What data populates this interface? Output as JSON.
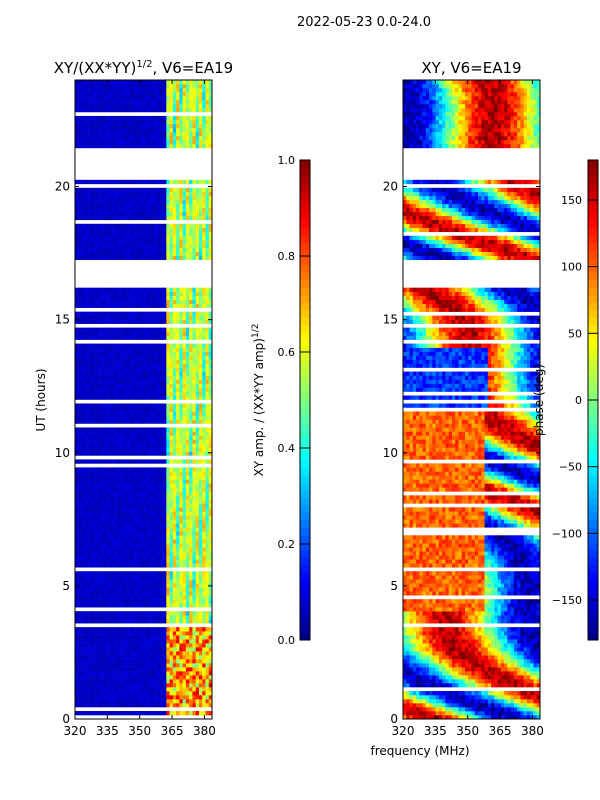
{
  "chart_data": {
    "type": "heatmap",
    "suptitle": "2022-05-23 0.0-24.0",
    "xlabel": "frequency (MHz)",
    "panels": [
      {
        "id": "amp",
        "title_main": "XY/(XX*YY)",
        "title_sup": "1/2",
        "title_tail": ", V6=EA19",
        "ylabel": "UT (hours)",
        "xlim": [
          320,
          383.5
        ],
        "ylim": [
          0,
          24
        ],
        "xticks": [
          320,
          335,
          350,
          365,
          380
        ],
        "yticks": [
          0,
          5,
          10,
          15,
          20
        ],
        "colorbar": {
          "label": "XY amp. / (XX*YY amp)",
          "label_sup": "1/2",
          "range": [
            0.0,
            1.0
          ],
          "ticks": [
            "0.0",
            "0.2",
            "0.4",
            "0.6",
            "0.8",
            "1.0"
          ],
          "colormap": "jet"
        }
      },
      {
        "id": "phase",
        "title_main": "XY, V6=EA19",
        "title_sup": "",
        "title_tail": "",
        "ylabel": "",
        "xlim": [
          320,
          383.5
        ],
        "ylim": [
          0,
          24
        ],
        "xticks": [
          320,
          335,
          350,
          365,
          380
        ],
        "yticks": [
          0,
          5,
          10,
          15,
          20
        ],
        "colorbar": {
          "label": "phase (deg)",
          "label_sup": "",
          "range": [
            -180,
            180
          ],
          "ticks": [
            "−150",
            "−100",
            "−50",
            "0",
            "50",
            "100",
            "150"
          ],
          "colormap": "jet"
        }
      }
    ],
    "flagged_ut_ranges": [
      [
        20.3,
        21.4
      ],
      [
        16.2,
        17.2
      ],
      [
        3.4,
        3.65
      ],
      [
        5.6,
        5.75
      ],
      [
        14.1,
        14.25
      ],
      [
        0.7,
        0.8
      ]
    ]
  }
}
